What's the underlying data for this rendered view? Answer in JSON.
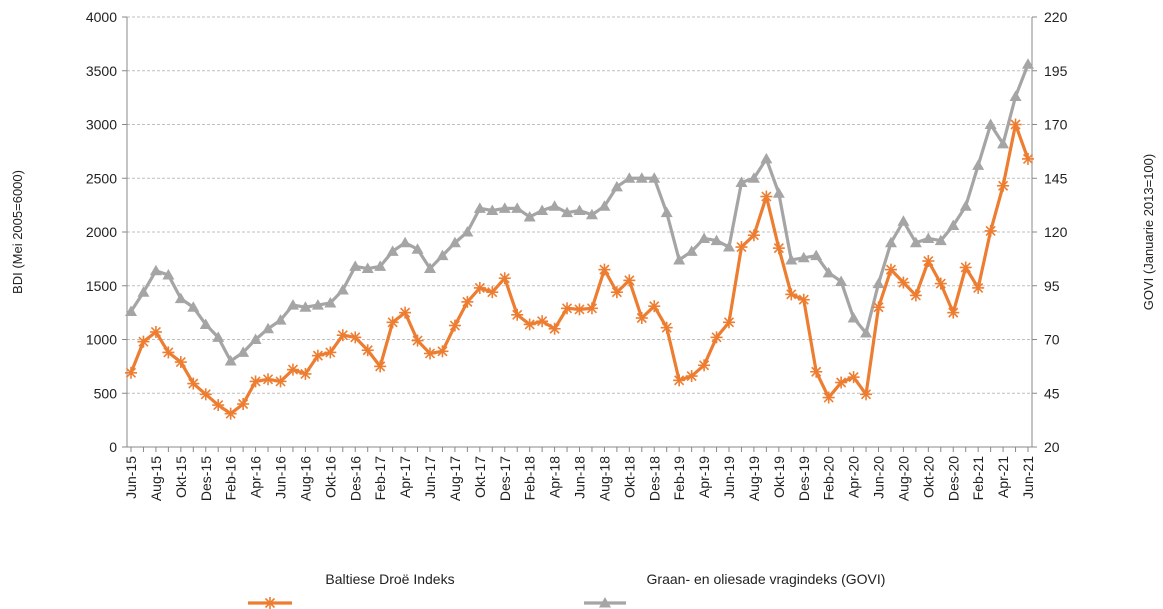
{
  "chart_data": {
    "type": "line",
    "title": "",
    "ylabel_left": "BDI (Mei 2005=6000)",
    "ylabel_right": "GOVI (Januarie 2013=100)",
    "ylim_left": [
      0,
      4000
    ],
    "ylim_right": [
      20,
      220
    ],
    "yticks_left": [
      "0",
      "500",
      "1000",
      "1500",
      "2000",
      "2500",
      "3000",
      "3500",
      "4000"
    ],
    "yticks_right": [
      "20",
      "45",
      "70",
      "95",
      "120",
      "145",
      "170",
      "195",
      "220"
    ],
    "grid": true,
    "legend_position": "bottom",
    "x_tick_labels": [
      "Jun-15",
      "Aug-15",
      "Okt-15",
      "Des-15",
      "Feb-16",
      "Apr-16",
      "Jun-16",
      "Aug-16",
      "Okt-16",
      "Des-16",
      "Feb-17",
      "Apr-17",
      "Jun-17",
      "Aug-17",
      "Okt-17",
      "Des-17",
      "Feb-18",
      "Apr-18",
      "Jun-18",
      "Aug-18",
      "Okt-18",
      "Des-18",
      "Feb-19",
      "Apr-19",
      "Jun-19",
      "Aug-19",
      "Okt-19",
      "Des-19",
      "Feb-20",
      "Apr-20",
      "Jun-20",
      "Aug-20",
      "Okt-20",
      "Des-20",
      "Feb-21",
      "Apr-21",
      "Jun-21"
    ],
    "x": [
      "Jun-15",
      "Jul-15",
      "Aug-15",
      "Sep-15",
      "Okt-15",
      "Nov-15",
      "Des-15",
      "Jan-16",
      "Feb-16",
      "Mrt-16",
      "Apr-16",
      "Mei-16",
      "Jun-16",
      "Jul-16",
      "Aug-16",
      "Sep-16",
      "Okt-16",
      "Nov-16",
      "Des-16",
      "Jan-17",
      "Feb-17",
      "Mrt-17",
      "Apr-17",
      "Mei-17",
      "Jun-17",
      "Jul-17",
      "Aug-17",
      "Sep-17",
      "Okt-17",
      "Nov-17",
      "Des-17",
      "Jan-18",
      "Feb-18",
      "Mrt-18",
      "Apr-18",
      "Mei-18",
      "Jun-18",
      "Jul-18",
      "Aug-18",
      "Sep-18",
      "Okt-18",
      "Nov-18",
      "Des-18",
      "Jan-19",
      "Feb-19",
      "Mrt-19",
      "Apr-19",
      "Mei-19",
      "Jun-19",
      "Jul-19",
      "Aug-19",
      "Sep-19",
      "Okt-19",
      "Nov-19",
      "Des-19",
      "Jan-20",
      "Feb-20",
      "Mrt-20",
      "Apr-20",
      "Mei-20",
      "Jun-20",
      "Jul-20",
      "Aug-20",
      "Sep-20",
      "Okt-20",
      "Nov-20",
      "Des-20",
      "Jan-21",
      "Feb-21",
      "Mrt-21",
      "Apr-21",
      "Mei-21",
      "Jun-21"
    ],
    "series": [
      {
        "name": "Baltiese Droë Indeks",
        "axis": "left",
        "color": "#ED7D31",
        "marker": "star",
        "values": [
          690,
          980,
          1070,
          880,
          790,
          590,
          490,
          390,
          310,
          400,
          610,
          630,
          610,
          720,
          680,
          850,
          880,
          1040,
          1020,
          900,
          750,
          1160,
          1250,
          990,
          870,
          890,
          1130,
          1350,
          1480,
          1440,
          1570,
          1230,
          1140,
          1170,
          1100,
          1290,
          1280,
          1290,
          1650,
          1440,
          1550,
          1200,
          1310,
          1110,
          620,
          660,
          760,
          1020,
          1160,
          1860,
          1970,
          2330,
          1850,
          1420,
          1370,
          700,
          460,
          600,
          650,
          490,
          1300,
          1650,
          1530,
          1410,
          1730,
          1520,
          1250,
          1670,
          1480,
          2010,
          2430,
          3000,
          2680
        ]
      },
      {
        "name": "Graan- en oliesade vragindeks (GOVI)",
        "axis": "right",
        "color": "#A5A5A5",
        "marker": "triangle",
        "values": [
          83,
          92,
          102,
          100,
          89,
          85,
          77,
          71,
          60,
          64,
          70,
          75,
          79,
          86,
          85,
          86,
          87,
          93,
          104,
          103,
          104,
          111,
          115,
          112,
          103,
          109,
          115,
          120,
          131,
          130,
          131,
          131,
          127,
          130,
          132,
          129,
          130,
          128,
          132,
          141,
          145,
          145,
          145,
          129,
          107,
          111,
          117,
          116,
          113,
          143,
          145,
          154,
          138,
          107,
          108,
          109,
          101,
          97,
          80,
          73,
          96,
          115,
          125,
          115,
          117,
          116,
          123,
          132,
          151,
          170,
          161,
          183,
          198
        ]
      }
    ]
  }
}
